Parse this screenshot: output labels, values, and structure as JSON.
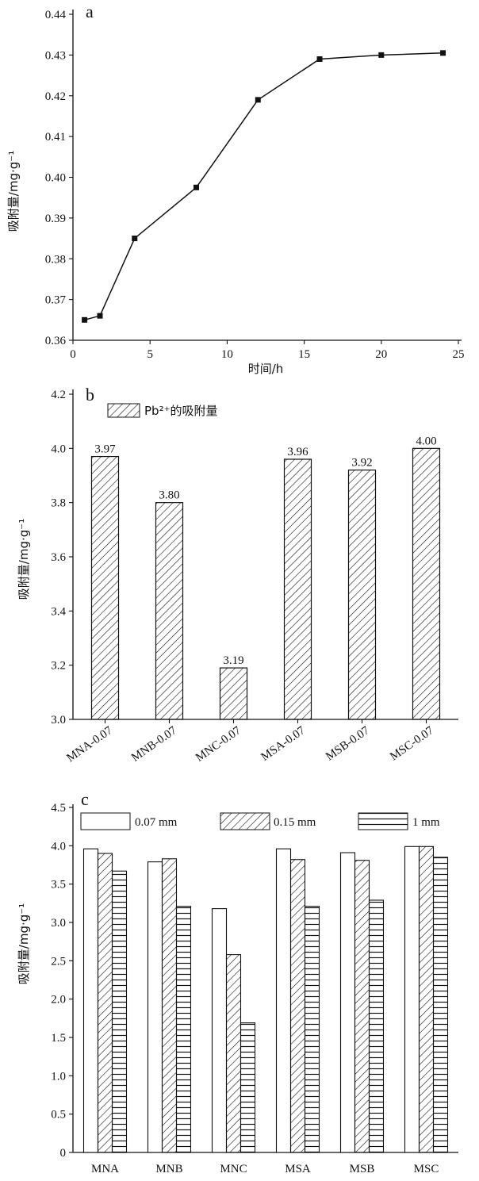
{
  "chart_data": [
    {
      "type": "line",
      "panel_label": "a",
      "xlabel": "时间/h",
      "ylabel": "吸附量/mg·g⁻¹",
      "xlim": [
        0,
        25
      ],
      "ylim": [
        0.36,
        0.44
      ],
      "xticks": [
        "0",
        "5",
        "10",
        "15",
        "20",
        "25"
      ],
      "yticks": [
        "0.36",
        "0.37",
        "0.38",
        "0.39",
        "0.40",
        "0.41",
        "0.42",
        "0.43",
        "0.44"
      ],
      "x": [
        0.75,
        1.75,
        4,
        8,
        12,
        16,
        20,
        24
      ],
      "y": [
        0.365,
        0.366,
        0.385,
        0.3975,
        0.419,
        0.429,
        0.43,
        0.4305
      ]
    },
    {
      "type": "bar",
      "panel_label": "b",
      "ylabel": "吸附量/mg·g⁻¹",
      "ylim": [
        3.0,
        4.2
      ],
      "yticks": [
        "3.0",
        "3.2",
        "3.4",
        "3.6",
        "3.8",
        "4.0",
        "4.2"
      ],
      "legend": "Pb²⁺的吸附量",
      "categories": [
        "MNA-0.07",
        "MNB-0.07",
        "MNC-0.07",
        "MSA-0.07",
        "MSB-0.07",
        "MSC-0.07"
      ],
      "values": [
        3.97,
        3.8,
        3.19,
        3.96,
        3.92,
        4.0
      ],
      "data_labels": [
        "3.97",
        "3.80",
        "3.19",
        "3.96",
        "3.92",
        "4.00"
      ]
    },
    {
      "type": "bar",
      "panel_label": "c",
      "ylabel": "吸附量/mg·g⁻¹",
      "ylim": [
        0,
        4.5
      ],
      "yticks": [
        "0",
        "0.5",
        "1.0",
        "1.5",
        "2.0",
        "2.5",
        "3.0",
        "3.5",
        "4.0",
        "4.5"
      ],
      "categories": [
        "MNA",
        "MNB",
        "MNC",
        "MSA",
        "MSB",
        "MSC"
      ],
      "series": [
        {
          "name": "0.07 mm",
          "values": [
            3.96,
            3.79,
            3.18,
            3.96,
            3.91,
            3.99
          ]
        },
        {
          "name": "0.15 mm",
          "values": [
            3.9,
            3.83,
            2.58,
            3.82,
            3.81,
            3.99
          ]
        },
        {
          "name": "1 mm",
          "values": [
            3.67,
            3.21,
            1.69,
            3.21,
            3.29,
            3.85
          ]
        }
      ]
    }
  ]
}
